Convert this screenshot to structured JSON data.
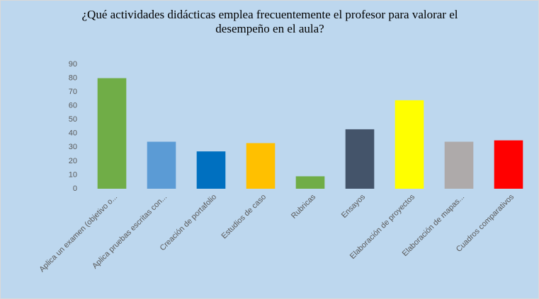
{
  "chart_data": {
    "type": "bar",
    "title": "¿Qué actividades  didácticas  emplea frecuentemente  el profesor para valorar  el desempeño  en el aula?",
    "categories": [
      "Aplica un examen (objetivo o...",
      "Aplica pruebas escritas con...",
      "Creación de portafolio",
      "Estudios de caso",
      "Rubricas",
      "Ensayos",
      "Elaboración de proyectos",
      "Elaboración de mapas...",
      "Cuadros comparativos"
    ],
    "values": [
      80,
      34,
      27,
      33,
      9,
      43,
      64,
      34,
      35
    ],
    "colors": [
      "#70ad47",
      "#5b9bd5",
      "#0070c0",
      "#ffc000",
      "#70ad47",
      "#44546a",
      "#ffff00",
      "#aeaaaa",
      "#ff0000"
    ],
    "ylim": [
      0,
      90
    ],
    "yticks": [
      0,
      10,
      20,
      30,
      40,
      50,
      60,
      70,
      80,
      90
    ],
    "grid": false
  }
}
